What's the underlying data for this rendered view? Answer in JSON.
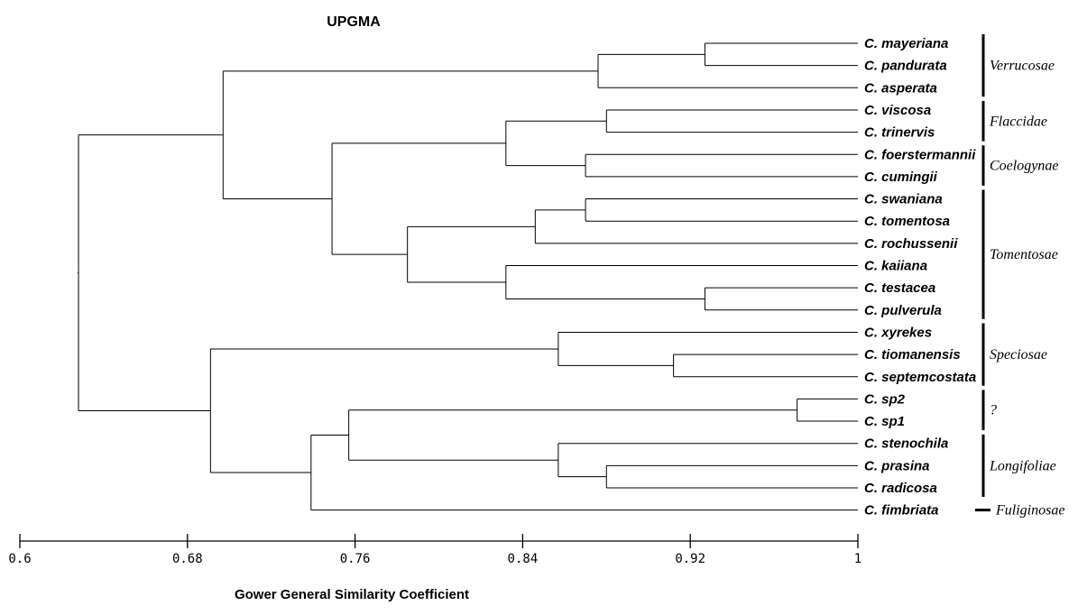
{
  "title": "UPGMA",
  "axis": {
    "label": "Gower General Similarity Coefficient",
    "ticks": [
      "0.6",
      "0.68",
      "0.76",
      "0.84",
      "0.92",
      "1"
    ],
    "range": [
      0.6,
      1
    ]
  },
  "leaves": [
    "C. mayeriana",
    "C. pandurata",
    "C. asperata",
    "C. viscosa",
    "C. trinervis",
    "C. foerstermannii",
    "C. cumingii",
    "C. swaniana",
    "C. tomentosa",
    "C. rochussenii",
    "C. kaiiana",
    "C. testacea",
    "C. pulverula",
    "C. xyrekes",
    "C. tiomanensis",
    "C. septemcostata",
    "C. sp2",
    "C. sp1",
    "C. stenochila",
    "C. prasina",
    "C. radicosa",
    "C. fimbriata"
  ],
  "sections": [
    {
      "name": "Verrucosae",
      "from": 0,
      "to": 2
    },
    {
      "name": "Flaccidae",
      "from": 3,
      "to": 4
    },
    {
      "name": "Coelogynae",
      "from": 5,
      "to": 6
    },
    {
      "name": "Tomentosae",
      "from": 7,
      "to": 12
    },
    {
      "name": "Speciosae",
      "from": 13,
      "to": 15
    },
    {
      "name": "?",
      "from": 16,
      "to": 17
    },
    {
      "name": "Longifoliae",
      "from": 18,
      "to": 20
    },
    {
      "name": "Fuliginosae",
      "from": 21,
      "to": 21
    }
  ],
  "merges": [
    {
      "id": "n1",
      "a": 0,
      "b": 1,
      "sim": 0.927
    },
    {
      "id": "n2",
      "a": "n1",
      "b": 2,
      "sim": 0.876
    },
    {
      "id": "n3",
      "a": 3,
      "b": 4,
      "sim": 0.88
    },
    {
      "id": "n4",
      "a": 5,
      "b": 6,
      "sim": 0.87
    },
    {
      "id": "n5",
      "a": "n3",
      "b": "n4",
      "sim": 0.832
    },
    {
      "id": "n6",
      "a": 7,
      "b": 8,
      "sim": 0.87
    },
    {
      "id": "n7",
      "a": "n6",
      "b": 9,
      "sim": 0.846
    },
    {
      "id": "n8",
      "a": 11,
      "b": 12,
      "sim": 0.927
    },
    {
      "id": "n9",
      "a": 10,
      "b": "n8",
      "sim": 0.832
    },
    {
      "id": "n10",
      "a": "n7",
      "b": "n9",
      "sim": 0.785
    },
    {
      "id": "n11",
      "a": "n5",
      "b": "n10",
      "sim": 0.749
    },
    {
      "id": "n12",
      "a": "n2",
      "b": "n11",
      "sim": 0.697
    },
    {
      "id": "n13",
      "a": 14,
      "b": 15,
      "sim": 0.912
    },
    {
      "id": "n14",
      "a": 13,
      "b": "n13",
      "sim": 0.857
    },
    {
      "id": "n15",
      "a": 16,
      "b": 17,
      "sim": 0.971
    },
    {
      "id": "n16",
      "a": 19,
      "b": 20,
      "sim": 0.88
    },
    {
      "id": "n17",
      "a": 18,
      "b": "n16",
      "sim": 0.857
    },
    {
      "id": "n18",
      "a": "n15",
      "b": "n17",
      "sim": 0.757
    },
    {
      "id": "n19",
      "a": "n18",
      "b": 21,
      "sim": 0.739
    },
    {
      "id": "n20",
      "a": "n14",
      "b": "n19",
      "sim": 0.691
    },
    {
      "id": "n21",
      "a": "n12",
      "b": "n20",
      "sim": 0.628
    }
  ]
}
